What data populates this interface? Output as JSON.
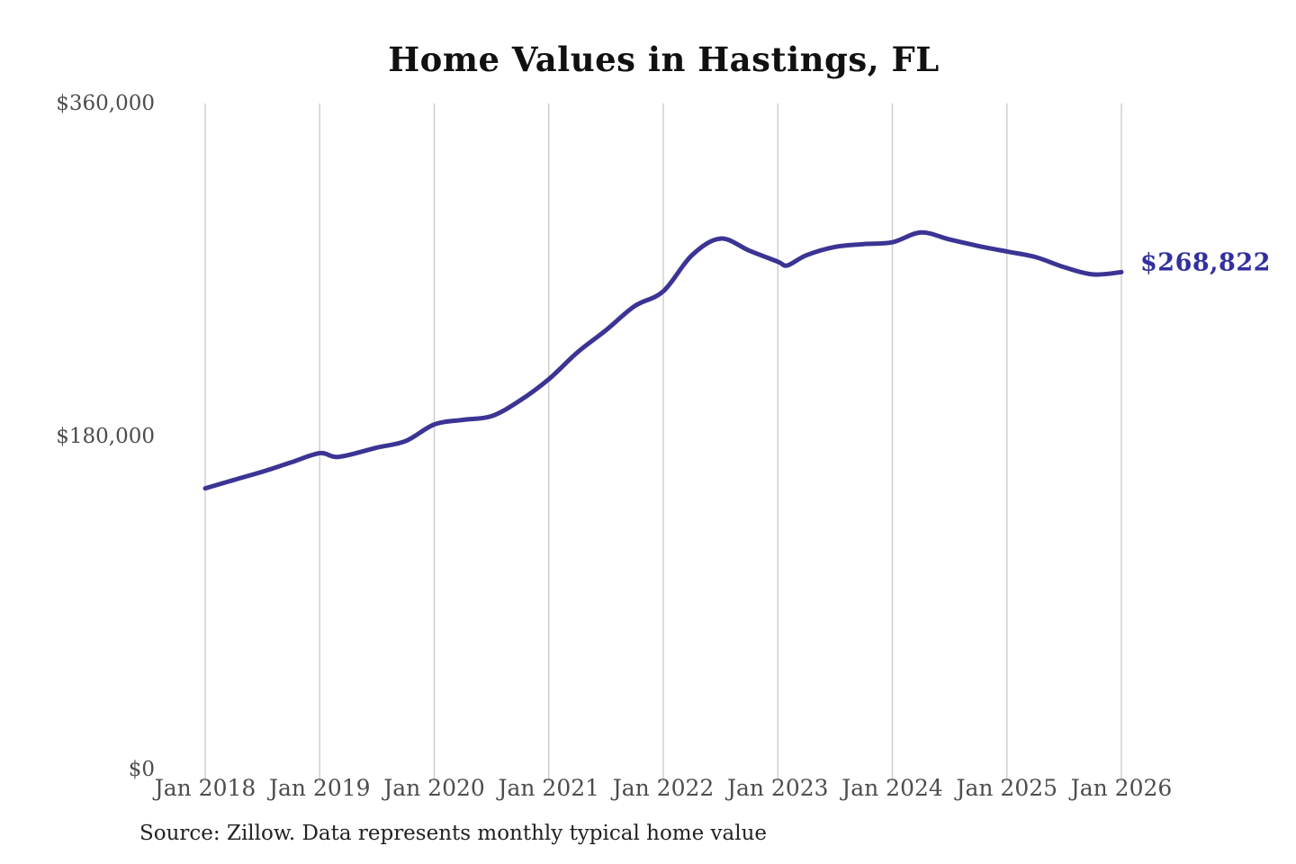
{
  "title": "Home Values in Hastings, FL",
  "source_note": "Source: Zillow. Data represents monthly typical home value",
  "colors": {
    "line": "#3b3494",
    "end_label": "#32309e",
    "grid": "#cccccc",
    "axis_text": "#4d4d4d",
    "title_text": "#111111",
    "source_text": "#222222"
  },
  "chart_data": {
    "type": "line",
    "title": "Home Values in Hastings, FL",
    "grid": "vertical-only",
    "legend": "none",
    "ylim": [
      0,
      360000
    ],
    "y_ticks": [
      {
        "value": 0,
        "label": "$0"
      },
      {
        "value": 180000,
        "label": "$180,000"
      },
      {
        "value": 360000,
        "label": "$360,000"
      }
    ],
    "x_ticks": [
      {
        "year": 2018,
        "label": "Jan 2018"
      },
      {
        "year": 2019,
        "label": "Jan 2019"
      },
      {
        "year": 2020,
        "label": "Jan 2020"
      },
      {
        "year": 2021,
        "label": "Jan 2021"
      },
      {
        "year": 2022,
        "label": "Jan 2022"
      },
      {
        "year": 2023,
        "label": "Jan 2023"
      },
      {
        "year": 2024,
        "label": "Jan 2024"
      },
      {
        "year": 2025,
        "label": "Jan 2025"
      },
      {
        "year": 2026,
        "label": "Jan 2026"
      }
    ],
    "end_label": "$268,822",
    "end_value": 268822,
    "series": [
      {
        "points": [
          [
            "2018-01",
            152000
          ],
          [
            "2018-04",
            156500
          ],
          [
            "2018-07",
            161000
          ],
          [
            "2018-10",
            166000
          ],
          [
            "2019-01",
            171000
          ],
          [
            "2019-03",
            169000
          ],
          [
            "2019-07",
            174000
          ],
          [
            "2019-10",
            177500
          ],
          [
            "2020-01",
            186500
          ],
          [
            "2020-04",
            189000
          ],
          [
            "2020-07",
            191000
          ],
          [
            "2020-10",
            199500
          ],
          [
            "2021-01",
            211000
          ],
          [
            "2021-04",
            225500
          ],
          [
            "2021-07",
            237500
          ],
          [
            "2021-10",
            250500
          ],
          [
            "2022-01",
            258500
          ],
          [
            "2022-04",
            278000
          ],
          [
            "2022-07",
            287000
          ],
          [
            "2022-10",
            280500
          ],
          [
            "2023-01",
            274500
          ],
          [
            "2023-02",
            272500
          ],
          [
            "2023-04",
            278000
          ],
          [
            "2023-07",
            282500
          ],
          [
            "2023-10",
            284000
          ],
          [
            "2024-01",
            285000
          ],
          [
            "2024-04",
            290300
          ],
          [
            "2024-07",
            286500
          ],
          [
            "2024-10",
            283000
          ],
          [
            "2025-01",
            280000
          ],
          [
            "2025-04",
            277000
          ],
          [
            "2025-07",
            271500
          ],
          [
            "2025-10",
            267600
          ],
          [
            "2026-01",
            268822
          ]
        ]
      }
    ]
  }
}
